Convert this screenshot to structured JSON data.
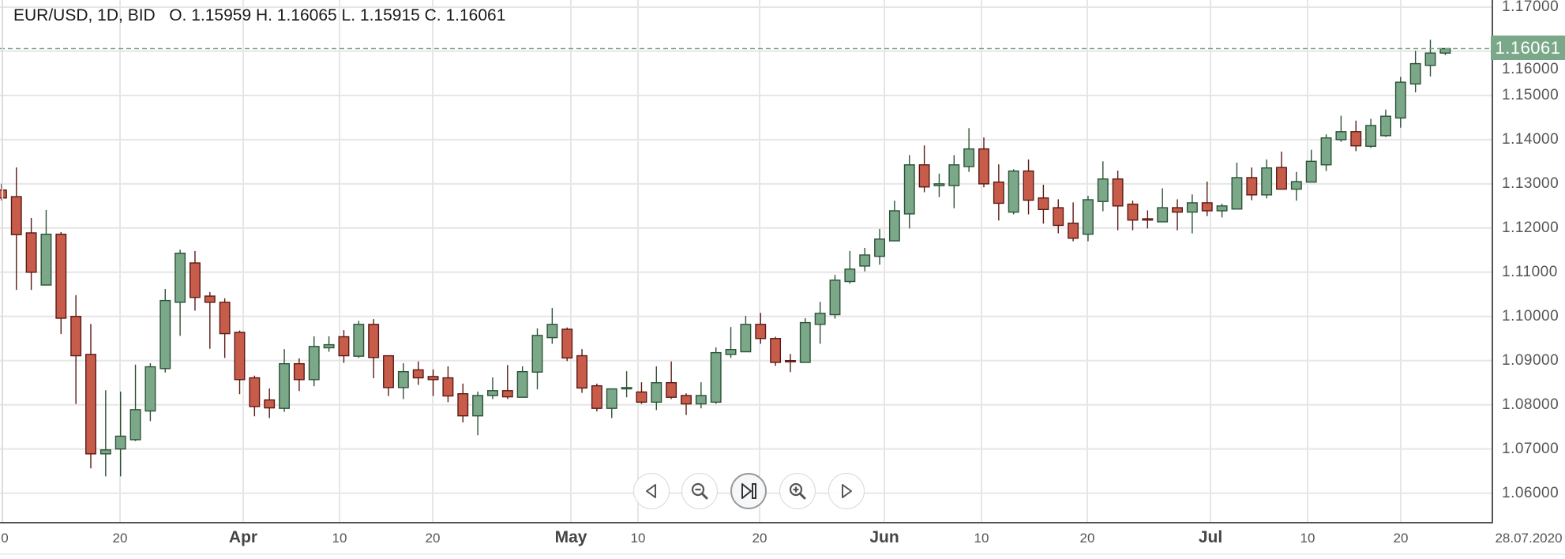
{
  "header": {
    "title": "EUR/USD, 1D, BID",
    "ohlc": "O. 1.15959 H. 1.16065 L. 1.15915 C. 1.16061"
  },
  "last_price": "1.16061",
  "date_label": "28.07.2020",
  "nav_buttons": [
    {
      "name": "scroll-left",
      "icon": "triangle-left-icon"
    },
    {
      "name": "zoom-out",
      "icon": "zoom-out-icon"
    },
    {
      "name": "reset-to-latest",
      "icon": "skip-to-end-icon"
    },
    {
      "name": "zoom-in",
      "icon": "zoom-in-icon"
    },
    {
      "name": "scroll-right",
      "icon": "triangle-right-icon"
    }
  ],
  "colors": {
    "up_body": "#7aa888",
    "up_border": "#2c5236",
    "down_body": "#c85c4a",
    "down_border": "#5a1a14",
    "last_price": "#7aa888",
    "grid": "#e6e6e6",
    "axis": "#555555"
  },
  "chart_data": {
    "type": "candlestick",
    "ylim": [
      1.0532,
      1.1716
    ],
    "grid": true,
    "y_ticks": [
      "1.17000",
      "1.16000",
      "1.15000",
      "1.14000",
      "1.13000",
      "1.12000",
      "1.11000",
      "1.10000",
      "1.09000",
      "1.08000",
      "1.07000",
      "1.06000"
    ],
    "y_tick_values": [
      1.17,
      1.16,
      1.15,
      1.14,
      1.13,
      1.12,
      1.11,
      1.1,
      1.09,
      1.08,
      1.07,
      1.06
    ],
    "x_ticks": [
      {
        "label": "0",
        "bold": false
      },
      {
        "label": "20",
        "bold": false
      },
      {
        "label": "Apr",
        "bold": true
      },
      {
        "label": "10",
        "bold": false
      },
      {
        "label": "20",
        "bold": false
      },
      {
        "label": "May",
        "bold": true
      },
      {
        "label": "10",
        "bold": false
      },
      {
        "label": "20",
        "bold": false
      },
      {
        "label": "Jun",
        "bold": true
      },
      {
        "label": "10",
        "bold": false
      },
      {
        "label": "20",
        "bold": false
      },
      {
        "label": "Jul",
        "bold": true
      },
      {
        "label": "10",
        "bold": false
      },
      {
        "label": "20",
        "bold": false
      }
    ],
    "last_price_line": 1.16061,
    "ohlc": [
      [
        1.1286,
        1.13,
        1.1262,
        1.1268
      ],
      [
        1.1271,
        1.1337,
        1.106,
        1.1185
      ],
      [
        1.1189,
        1.1223,
        1.106,
        1.11
      ],
      [
        1.1071,
        1.1241,
        1.107,
        1.1186
      ],
      [
        1.1186,
        1.1191,
        1.096,
        1.0996
      ],
      [
        1.1,
        1.1048,
        1.0802,
        1.0911
      ],
      [
        1.0914,
        1.0983,
        1.0656,
        1.0689
      ],
      [
        1.0689,
        1.0833,
        1.0638,
        1.0698
      ],
      [
        1.07,
        1.083,
        1.0638,
        1.0729
      ],
      [
        1.0721,
        1.0891,
        1.0718,
        1.0789
      ],
      [
        1.0786,
        1.0894,
        1.0763,
        1.0886
      ],
      [
        1.0882,
        1.1062,
        1.0873,
        1.1036
      ],
      [
        1.1032,
        1.1151,
        1.0956,
        1.1143
      ],
      [
        1.1121,
        1.1148,
        1.1013,
        1.1043
      ],
      [
        1.1046,
        1.1055,
        1.0927,
        1.1032
      ],
      [
        1.1032,
        1.1041,
        1.0906,
        1.0961
      ],
      [
        1.0964,
        1.0968,
        1.0824,
        1.0857
      ],
      [
        1.0861,
        1.0866,
        1.0774,
        1.0796
      ],
      [
        1.0811,
        1.0837,
        1.077,
        1.0793
      ],
      [
        1.0792,
        1.0926,
        1.0784,
        1.0893
      ],
      [
        1.0893,
        1.0905,
        1.0831,
        1.0857
      ],
      [
        1.0857,
        1.0955,
        1.0842,
        1.0932
      ],
      [
        1.0929,
        1.0955,
        1.092,
        1.0936
      ],
      [
        1.0954,
        1.0969,
        1.0895,
        1.0911
      ],
      [
        1.091,
        1.099,
        1.0906,
        1.0982
      ],
      [
        1.0982,
        1.0994,
        1.086,
        1.0907
      ],
      [
        1.0911,
        1.0911,
        1.082,
        1.0839
      ],
      [
        1.0839,
        1.0894,
        1.0813,
        1.0875
      ],
      [
        1.0879,
        1.0898,
        1.0845,
        1.0861
      ],
      [
        1.0864,
        1.088,
        1.082,
        1.0857
      ],
      [
        1.0861,
        1.0887,
        1.0806,
        1.082
      ],
      [
        1.0825,
        1.0848,
        1.076,
        1.0775
      ],
      [
        1.0775,
        1.083,
        1.0731,
        1.0821
      ],
      [
        1.0821,
        1.0862,
        1.0813,
        1.0832
      ],
      [
        1.0832,
        1.089,
        1.0813,
        1.0818
      ],
      [
        1.0817,
        1.0887,
        1.0817,
        1.0875
      ],
      [
        1.0874,
        1.0973,
        1.0835,
        1.0957
      ],
      [
        1.0952,
        1.1019,
        1.0938,
        1.0982
      ],
      [
        1.0971,
        1.0975,
        1.0899,
        1.0906
      ],
      [
        1.0911,
        1.0926,
        1.0827,
        1.0838
      ],
      [
        1.0843,
        1.0848,
        1.0785,
        1.0792
      ],
      [
        1.0792,
        1.0836,
        1.077,
        1.0836
      ],
      [
        1.0836,
        1.0876,
        1.0817,
        1.0839
      ],
      [
        1.0829,
        1.0851,
        1.0802,
        1.0806
      ],
      [
        1.0806,
        1.0887,
        1.0788,
        1.085
      ],
      [
        1.085,
        1.0898,
        1.0813,
        1.0817
      ],
      [
        1.0821,
        1.0826,
        1.0777,
        1.0802
      ],
      [
        1.0802,
        1.0851,
        1.0792,
        1.0821
      ],
      [
        1.0806,
        1.093,
        1.0802,
        1.0918
      ],
      [
        1.0914,
        1.0976,
        1.0906,
        1.0925
      ],
      [
        1.092,
        1.1001,
        1.092,
        1.0982
      ],
      [
        1.0982,
        1.1008,
        1.0938,
        1.095
      ],
      [
        1.095,
        1.0954,
        1.0888,
        1.0896
      ],
      [
        1.09,
        1.0915,
        1.0874,
        1.0898
      ],
      [
        1.0896,
        1.0996,
        1.0896,
        1.0986
      ],
      [
        1.0982,
        1.1033,
        1.0938,
        1.1007
      ],
      [
        1.1004,
        1.1094,
        1.0995,
        1.1082
      ],
      [
        1.1079,
        1.1148,
        1.1074,
        1.1107
      ],
      [
        1.1114,
        1.1155,
        1.1102,
        1.1139
      ],
      [
        1.1136,
        1.1198,
        1.1117,
        1.1175
      ],
      [
        1.1171,
        1.1262,
        1.1171,
        1.1239
      ],
      [
        1.1232,
        1.1365,
        1.1199,
        1.1343
      ],
      [
        1.1343,
        1.1387,
        1.1281,
        1.1293
      ],
      [
        1.1296,
        1.1323,
        1.127,
        1.13
      ],
      [
        1.1296,
        1.1365,
        1.1245,
        1.1343
      ],
      [
        1.1339,
        1.1426,
        1.1327,
        1.1379
      ],
      [
        1.1379,
        1.1405,
        1.1292,
        1.13
      ],
      [
        1.1304,
        1.1344,
        1.1217,
        1.1256
      ],
      [
        1.1236,
        1.1333,
        1.1231,
        1.1329
      ],
      [
        1.1329,
        1.1355,
        1.1231,
        1.1263
      ],
      [
        1.1268,
        1.1298,
        1.121,
        1.1242
      ],
      [
        1.1246,
        1.1265,
        1.1188,
        1.1206
      ],
      [
        1.1211,
        1.1258,
        1.117,
        1.1177
      ],
      [
        1.1186,
        1.1273,
        1.117,
        1.1264
      ],
      [
        1.126,
        1.1351,
        1.1238,
        1.1311
      ],
      [
        1.1311,
        1.133,
        1.1195,
        1.125
      ],
      [
        1.1254,
        1.1262,
        1.1195,
        1.1218
      ],
      [
        1.1221,
        1.124,
        1.1199,
        1.1218
      ],
      [
        1.1214,
        1.129,
        1.1214,
        1.1246
      ],
      [
        1.1246,
        1.1265,
        1.1195,
        1.1236
      ],
      [
        1.1236,
        1.1276,
        1.1188,
        1.1257
      ],
      [
        1.1257,
        1.1305,
        1.1227,
        1.1239
      ],
      [
        1.1239,
        1.1255,
        1.1224,
        1.125
      ],
      [
        1.1243,
        1.1348,
        1.1243,
        1.1314
      ],
      [
        1.1314,
        1.1337,
        1.1263,
        1.1275
      ],
      [
        1.1275,
        1.1355,
        1.1267,
        1.1336
      ],
      [
        1.1337,
        1.1373,
        1.1288,
        1.1288
      ],
      [
        1.1288,
        1.1327,
        1.1262,
        1.1305
      ],
      [
        1.1304,
        1.1377,
        1.1304,
        1.1351
      ],
      [
        1.1343,
        1.1412,
        1.1329,
        1.1404
      ],
      [
        1.14,
        1.1454,
        1.1395,
        1.1418
      ],
      [
        1.1418,
        1.1443,
        1.1374,
        1.1386
      ],
      [
        1.1385,
        1.1447,
        1.1381,
        1.1432
      ],
      [
        1.1409,
        1.1468,
        1.1406,
        1.1453
      ],
      [
        1.1449,
        1.1542,
        1.1427,
        1.153
      ],
      [
        1.1526,
        1.1601,
        1.1507,
        1.1572
      ],
      [
        1.1568,
        1.1626,
        1.1543,
        1.1596
      ],
      [
        1.15959,
        1.16065,
        1.15915,
        1.16061
      ]
    ]
  }
}
